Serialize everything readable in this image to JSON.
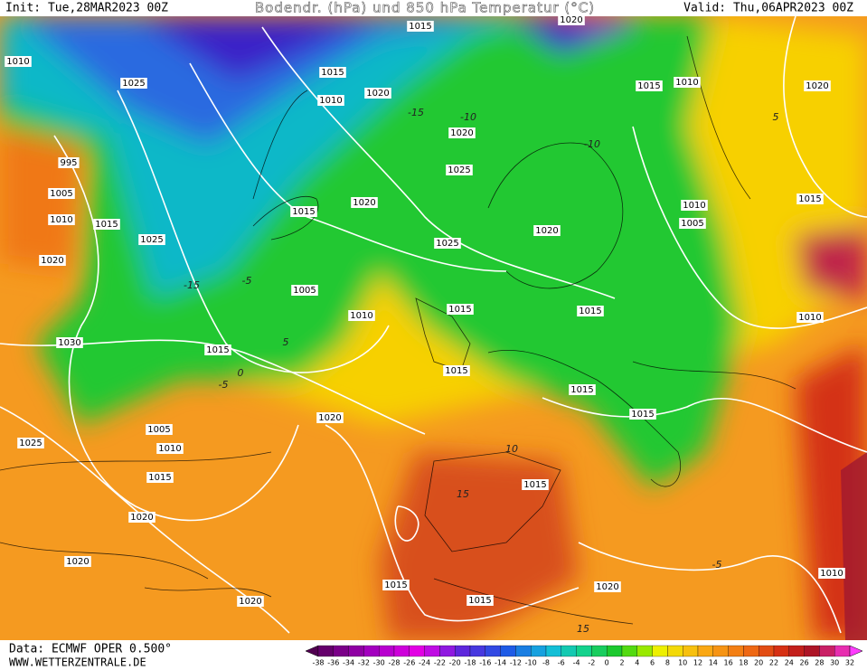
{
  "header": {
    "init": "Init: Tue,28MAR2023 00Z",
    "title": "Bodendr. (hPa) und 850 hPa Temperatur (°C)",
    "valid": "Valid: Thu,06APR2023 00Z"
  },
  "footer": {
    "source": "Data: ECMWF OPER 0.500°",
    "site": "WWW.WETTERZENTRALE.DE"
  },
  "isobar_labels": [
    1015,
    1020,
    1010,
    1025,
    1015,
    1010,
    1020,
    1020,
    1015,
    1010,
    1020,
    995,
    1005,
    1010,
    1015,
    1025,
    1020,
    1015,
    1020,
    1025,
    1025,
    1020,
    1010,
    1005,
    1015,
    1005,
    1010,
    1015,
    1015,
    1010,
    1030,
    1015,
    1015,
    1015,
    1015,
    1020,
    1005,
    1010,
    1025,
    1015,
    1015,
    1020,
    1020,
    1015,
    1020,
    1010,
    1020,
    1015
  ],
  "temperature_labels": [
    -10,
    -10,
    -15,
    -5,
    -15,
    0,
    -5,
    5,
    10,
    15,
    15,
    -5,
    5
  ],
  "legend": {
    "labels": [
      -38,
      -36,
      -34,
      -32,
      -30,
      -28,
      -26,
      -24,
      -22,
      -20,
      -18,
      -16,
      -14,
      -12,
      -10,
      -8,
      -6,
      -4,
      -2,
      0,
      2,
      4,
      6,
      8,
      10,
      12,
      14,
      16,
      18,
      20,
      22,
      24,
      26,
      28,
      30,
      32
    ]
  }
}
